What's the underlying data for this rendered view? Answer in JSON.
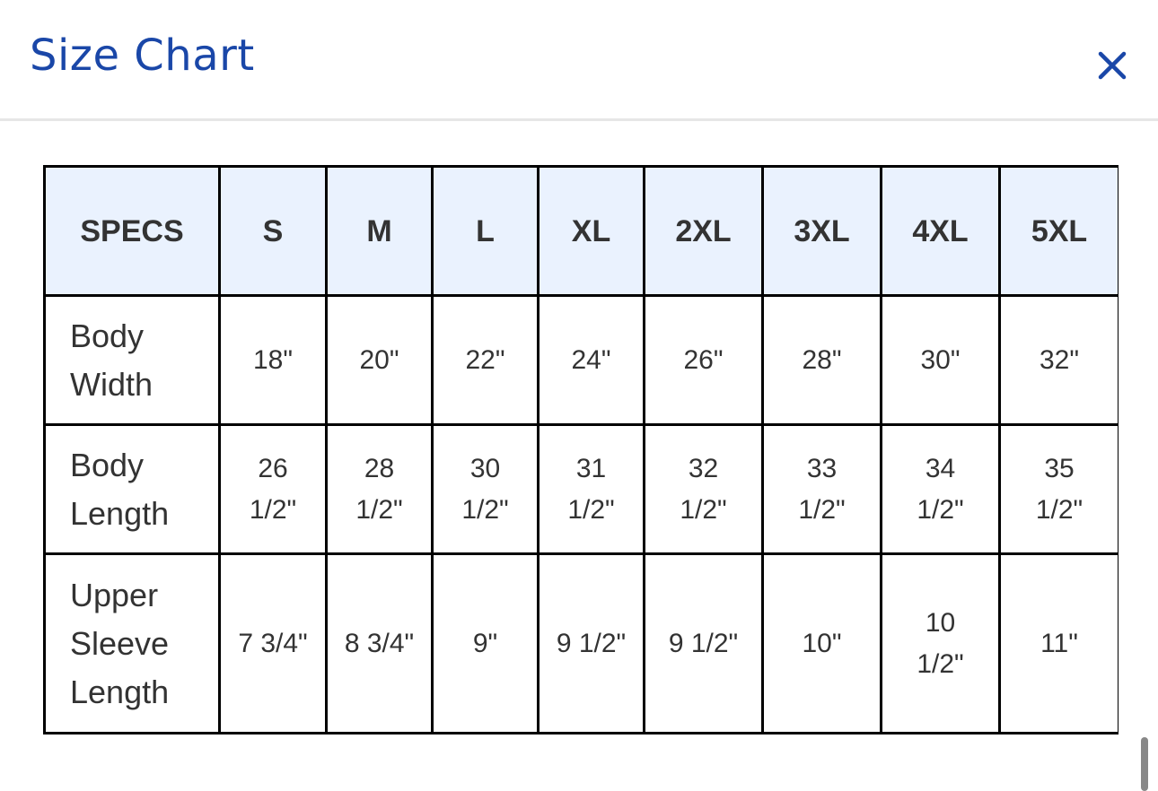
{
  "modal": {
    "title": "Size Chart",
    "close_icon": "close-icon",
    "accent_color": "#1a47a8",
    "header_bg": "#eaf2fe"
  },
  "table": {
    "headers": [
      "SPECS",
      "S",
      "M",
      "L",
      "XL",
      "2XL",
      "3XL",
      "4XL",
      "5XL"
    ],
    "rows": [
      {
        "label": "Body Width",
        "values": [
          "18\"",
          "20\"",
          "22\"",
          "24\"",
          "26\"",
          "28\"",
          "30\"",
          "32\""
        ]
      },
      {
        "label": "Body Length",
        "values": [
          "26 1/2\"",
          "28 1/2\"",
          "30 1/2\"",
          "31 1/2\"",
          "32 1/2\"",
          "33 1/2\"",
          "34 1/2\"",
          "35 1/2\""
        ]
      },
      {
        "label": "Upper Sleeve Length",
        "values": [
          "7 3/4\"",
          "8 3/4\"",
          "9\"",
          "9 1/2\"",
          "9 1/2\"",
          "10\"",
          "10 1/2\"",
          "11\""
        ]
      }
    ]
  }
}
